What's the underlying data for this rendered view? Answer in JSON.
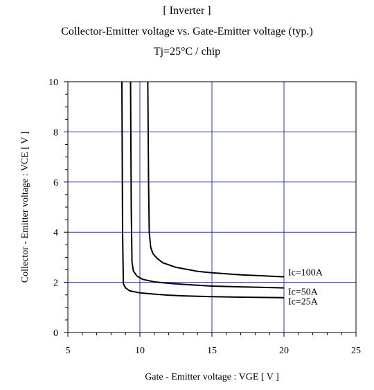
{
  "chart_data": {
    "type": "line",
    "title_lines": [
      "[ Inverter ]",
      "Collector-Emitter voltage  vs. Gate-Emitter voltage (typ.)",
      "Tj=25°C / chip"
    ],
    "xlabel": "Gate - Emitter voltage  :  VGE  [ V ]",
    "ylabel": "Collector - Emitter voltage  :  VCE  [ V ]",
    "xlim": [
      5,
      25
    ],
    "ylim": [
      0,
      10
    ],
    "x_ticks": [
      5,
      10,
      15,
      20,
      25
    ],
    "y_ticks": [
      0,
      2,
      4,
      6,
      8,
      10
    ],
    "grid": true,
    "grid_color": "#2f2fcc",
    "series": [
      {
        "name": "Ic=100A",
        "x": [
          10.55,
          10.6,
          10.65,
          10.75,
          10.9,
          11.2,
          11.6,
          12.5,
          14,
          15,
          17,
          20
        ],
        "y": [
          10,
          6.0,
          4.0,
          3.4,
          3.15,
          2.95,
          2.78,
          2.6,
          2.44,
          2.38,
          2.3,
          2.22
        ]
      },
      {
        "name": "Ic=50A",
        "x": [
          9.35,
          9.4,
          9.45,
          9.55,
          9.8,
          10.2,
          11,
          12,
          13,
          15,
          17,
          20
        ],
        "y": [
          10,
          5.0,
          2.8,
          2.45,
          2.25,
          2.12,
          2.02,
          1.96,
          1.92,
          1.85,
          1.82,
          1.78
        ]
      },
      {
        "name": "Ic=25A",
        "x": [
          8.75,
          8.8,
          8.85,
          9.0,
          9.3,
          10,
          11,
          12,
          13,
          15,
          17,
          20
        ],
        "y": [
          10,
          4.0,
          1.95,
          1.78,
          1.66,
          1.58,
          1.53,
          1.49,
          1.46,
          1.43,
          1.41,
          1.39
        ]
      }
    ]
  }
}
